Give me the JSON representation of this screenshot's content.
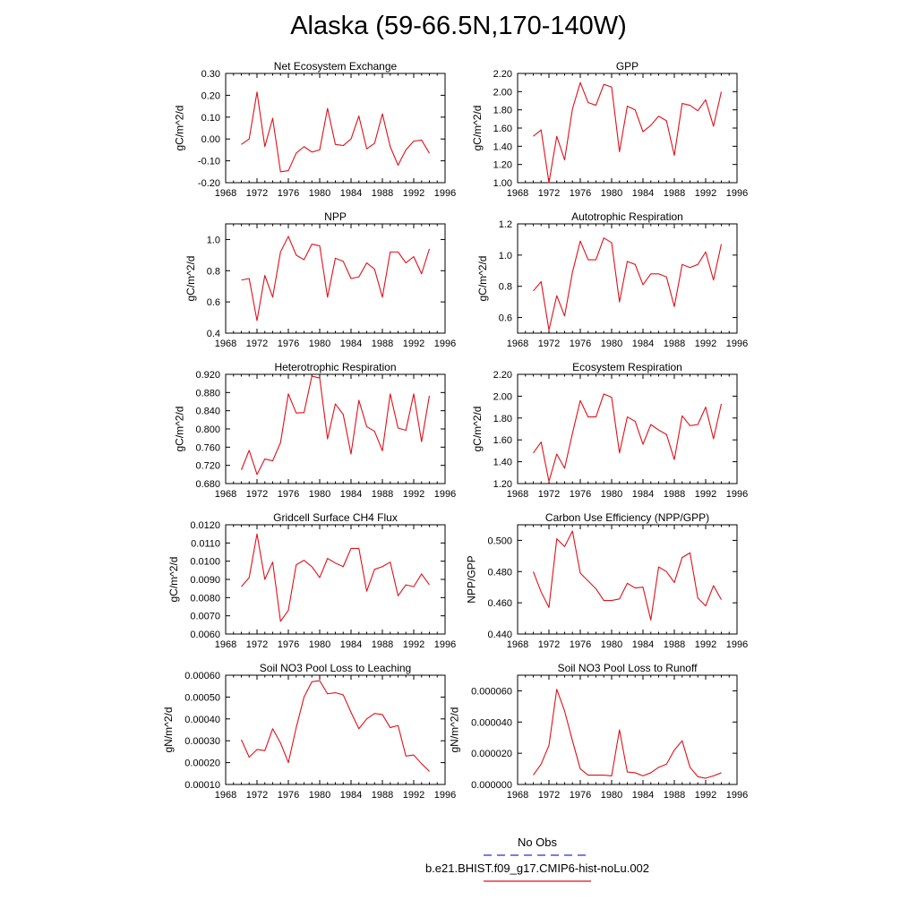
{
  "figure": {
    "title": "Alaska (59-66.5N,170-140W)"
  },
  "legend": {
    "items": [
      {
        "label": "No Obs",
        "color": "#2b2bdc",
        "style": "dashed"
      },
      {
        "label": "b.e21.BHIST.f09_g17.CMIP6-hist-noLu.002",
        "color": "#e0101a",
        "style": "solid"
      }
    ]
  },
  "chart_data": [
    {
      "type": "line",
      "title": "Net Ecosystem Exchange",
      "xlabel": "",
      "ylabel": "gC/m^2/d",
      "xlim": [
        1968,
        1996
      ],
      "ylim": [
        -0.2,
        0.3
      ],
      "xticks": [
        "1968",
        "1972",
        "1976",
        "1980",
        "1984",
        "1988",
        "1992",
        "1996"
      ],
      "yticks": [
        "-0.20",
        "-0.10",
        "0.00",
        "0.10",
        "0.20",
        "0.30"
      ],
      "x": [
        1970,
        1971,
        1972,
        1973,
        1974,
        1975,
        1976,
        1977,
        1978,
        1979,
        1980,
        1981,
        1982,
        1983,
        1984,
        1985,
        1986,
        1987,
        1988,
        1989,
        1990,
        1991,
        1992,
        1993,
        1994
      ],
      "series": [
        {
          "color": "#e0101a",
          "values": [
            -0.025,
            0.0,
            0.215,
            -0.035,
            0.095,
            -0.15,
            -0.145,
            -0.065,
            -0.035,
            -0.06,
            -0.05,
            0.14,
            -0.025,
            -0.03,
            0.0,
            0.105,
            -0.045,
            -0.02,
            0.115,
            -0.035,
            -0.12,
            -0.05,
            -0.01,
            -0.005,
            -0.065
          ]
        }
      ]
    },
    {
      "type": "line",
      "title": "GPP",
      "xlabel": "",
      "ylabel": "gC/m^2/d",
      "xlim": [
        1968,
        1996
      ],
      "ylim": [
        1.0,
        2.2
      ],
      "xticks": [
        "1968",
        "1972",
        "1976",
        "1980",
        "1984",
        "1988",
        "1992",
        "1996"
      ],
      "yticks": [
        "1.00",
        "1.20",
        "1.40",
        "1.60",
        "1.80",
        "2.00",
        "2.20"
      ],
      "x": [
        1970,
        1971,
        1972,
        1973,
        1974,
        1975,
        1976,
        1977,
        1978,
        1979,
        1980,
        1981,
        1982,
        1983,
        1984,
        1985,
        1986,
        1987,
        1988,
        1989,
        1990,
        1991,
        1992,
        1993,
        1994
      ],
      "series": [
        {
          "color": "#e0101a",
          "values": [
            1.51,
            1.58,
            1.0,
            1.51,
            1.25,
            1.81,
            2.1,
            1.88,
            1.85,
            2.08,
            2.05,
            1.34,
            1.84,
            1.8,
            1.56,
            1.63,
            1.73,
            1.68,
            1.3,
            1.87,
            1.85,
            1.79,
            1.91,
            1.62,
            2.0
          ]
        }
      ]
    },
    {
      "type": "line",
      "title": "NPP",
      "xlabel": "",
      "ylabel": "gC/m^2/d",
      "xlim": [
        1968,
        1996
      ],
      "ylim": [
        0.4,
        1.1
      ],
      "xticks": [
        "1968",
        "1972",
        "1976",
        "1980",
        "1984",
        "1988",
        "1992",
        "1996"
      ],
      "yticks": [
        "0.4",
        "0.6",
        "0.8",
        "1.0"
      ],
      "ytick_values": [
        0.4,
        0.6,
        0.8,
        1.0
      ],
      "x": [
        1970,
        1971,
        1972,
        1973,
        1974,
        1975,
        1976,
        1977,
        1978,
        1979,
        1980,
        1981,
        1982,
        1983,
        1984,
        1985,
        1986,
        1987,
        1988,
        1989,
        1990,
        1991,
        1992,
        1993,
        1994
      ],
      "series": [
        {
          "color": "#e0101a",
          "values": [
            0.74,
            0.75,
            0.48,
            0.77,
            0.63,
            0.92,
            1.02,
            0.9,
            0.87,
            0.97,
            0.96,
            0.63,
            0.88,
            0.86,
            0.75,
            0.76,
            0.85,
            0.81,
            0.63,
            0.92,
            0.92,
            0.85,
            0.89,
            0.78,
            0.94
          ]
        }
      ]
    },
    {
      "type": "line",
      "title": "Autotrophic Respiration",
      "xlabel": "",
      "ylabel": "gC/m^2/d",
      "xlim": [
        1968,
        1996
      ],
      "ylim": [
        0.5,
        1.2
      ],
      "xticks": [
        "1968",
        "1972",
        "1976",
        "1980",
        "1984",
        "1988",
        "1992",
        "1996"
      ],
      "yticks": [
        "0.6",
        "0.8",
        "1.0",
        "1.2"
      ],
      "ytick_values": [
        0.6,
        0.8,
        1.0,
        1.2
      ],
      "x": [
        1970,
        1971,
        1972,
        1973,
        1974,
        1975,
        1976,
        1977,
        1978,
        1979,
        1980,
        1981,
        1982,
        1983,
        1984,
        1985,
        1986,
        1987,
        1988,
        1989,
        1990,
        1991,
        1992,
        1993,
        1994
      ],
      "series": [
        {
          "color": "#e0101a",
          "values": [
            0.77,
            0.83,
            0.52,
            0.74,
            0.61,
            0.89,
            1.09,
            0.97,
            0.97,
            1.11,
            1.08,
            0.7,
            0.96,
            0.94,
            0.81,
            0.88,
            0.88,
            0.86,
            0.67,
            0.94,
            0.92,
            0.94,
            1.02,
            0.84,
            1.07
          ]
        }
      ]
    },
    {
      "type": "line",
      "title": "Heterotrophic Respiration",
      "xlabel": "",
      "ylabel": "gC/m^2/d",
      "xlim": [
        1968,
        1996
      ],
      "ylim": [
        0.68,
        0.92
      ],
      "xticks": [
        "1968",
        "1972",
        "1976",
        "1980",
        "1984",
        "1988",
        "1992",
        "1996"
      ],
      "yticks": [
        "0.680",
        "0.720",
        "0.760",
        "0.800",
        "0.840",
        "0.880",
        "0.920"
      ],
      "x": [
        1970,
        1971,
        1972,
        1973,
        1974,
        1975,
        1976,
        1977,
        1978,
        1979,
        1980,
        1981,
        1982,
        1983,
        1984,
        1985,
        1986,
        1987,
        1988,
        1989,
        1990,
        1991,
        1992,
        1993,
        1994
      ],
      "series": [
        {
          "color": "#e0101a",
          "values": [
            0.71,
            0.753,
            0.7,
            0.734,
            0.73,
            0.77,
            0.877,
            0.835,
            0.836,
            0.916,
            0.912,
            0.778,
            0.855,
            0.832,
            0.745,
            0.863,
            0.805,
            0.795,
            0.752,
            0.877,
            0.802,
            0.797,
            0.877,
            0.772,
            0.873
          ]
        }
      ]
    },
    {
      "type": "line",
      "title": "Ecosystem Respiration",
      "xlabel": "",
      "ylabel": "gC/m^2/d",
      "xlim": [
        1968,
        1996
      ],
      "ylim": [
        1.2,
        2.2
      ],
      "xticks": [
        "1968",
        "1972",
        "1976",
        "1980",
        "1984",
        "1988",
        "1992",
        "1996"
      ],
      "yticks": [
        "1.20",
        "1.40",
        "1.60",
        "1.80",
        "2.00",
        "2.20"
      ],
      "x": [
        1970,
        1971,
        1972,
        1973,
        1974,
        1975,
        1976,
        1977,
        1978,
        1979,
        1980,
        1981,
        1982,
        1983,
        1984,
        1985,
        1986,
        1987,
        1988,
        1989,
        1990,
        1991,
        1992,
        1993,
        1994
      ],
      "series": [
        {
          "color": "#e0101a",
          "values": [
            1.48,
            1.58,
            1.22,
            1.47,
            1.34,
            1.66,
            1.96,
            1.81,
            1.81,
            2.02,
            1.99,
            1.48,
            1.81,
            1.77,
            1.56,
            1.74,
            1.69,
            1.65,
            1.42,
            1.82,
            1.73,
            1.74,
            1.9,
            1.61,
            1.93
          ]
        }
      ]
    },
    {
      "type": "line",
      "title": "Gridcell Surface CH4 Flux",
      "xlabel": "",
      "ylabel": "gC/m^2/d",
      "xlim": [
        1968,
        1996
      ],
      "ylim": [
        0.006,
        0.012
      ],
      "xticks": [
        "1968",
        "1972",
        "1976",
        "1980",
        "1984",
        "1988",
        "1992",
        "1996"
      ],
      "yticks": [
        "0.0060",
        "0.0070",
        "0.0080",
        "0.0090",
        "0.0100",
        "0.0110",
        "0.0120"
      ],
      "x": [
        1970,
        1971,
        1972,
        1973,
        1974,
        1975,
        1976,
        1977,
        1978,
        1979,
        1980,
        1981,
        1982,
        1983,
        1984,
        1985,
        1986,
        1987,
        1988,
        1989,
        1990,
        1991,
        1992,
        1993,
        1994
      ],
      "series": [
        {
          "color": "#e0101a",
          "values": [
            0.0086,
            0.0091,
            0.0115,
            0.009,
            0.00995,
            0.0067,
            0.0073,
            0.0098,
            0.01005,
            0.0097,
            0.0091,
            0.01015,
            0.0099,
            0.0097,
            0.0107,
            0.0107,
            0.00835,
            0.00955,
            0.0097,
            0.00995,
            0.0081,
            0.0087,
            0.0086,
            0.0093,
            0.0087
          ]
        }
      ]
    },
    {
      "type": "line",
      "title": "Carbon Use Efficiency (NPP/GPP)",
      "xlabel": "",
      "ylabel": "NPP/GPP",
      "xlim": [
        1968,
        1996
      ],
      "ylim": [
        0.44,
        0.51
      ],
      "xticks": [
        "1968",
        "1972",
        "1976",
        "1980",
        "1984",
        "1988",
        "1992",
        "1996"
      ],
      "yticks": [
        "0.440",
        "0.460",
        "0.480",
        "0.500"
      ],
      "ytick_values": [
        0.44,
        0.46,
        0.48,
        0.5
      ],
      "x": [
        1970,
        1971,
        1972,
        1973,
        1974,
        1975,
        1976,
        1977,
        1978,
        1979,
        1980,
        1981,
        1982,
        1983,
        1984,
        1985,
        1986,
        1987,
        1988,
        1989,
        1990,
        1991,
        1992,
        1993,
        1994
      ],
      "series": [
        {
          "color": "#e0101a",
          "values": [
            0.48,
            0.467,
            0.457,
            0.501,
            0.496,
            0.506,
            0.479,
            0.474,
            0.469,
            0.4615,
            0.4615,
            0.4625,
            0.4725,
            0.4695,
            0.47,
            0.449,
            0.483,
            0.48,
            0.473,
            0.489,
            0.492,
            0.463,
            0.458,
            0.471,
            0.462
          ]
        }
      ]
    },
    {
      "type": "line",
      "title": "Soil NO3 Pool Loss to Leaching",
      "xlabel": "",
      "ylabel": "gN/m^2/d",
      "xlim": [
        1968,
        1996
      ],
      "ylim": [
        0.0001,
        0.0006
      ],
      "xticks": [
        "1968",
        "1972",
        "1976",
        "1980",
        "1984",
        "1988",
        "1992",
        "1996"
      ],
      "yticks": [
        "0.00010",
        "0.00020",
        "0.00030",
        "0.00040",
        "0.00050",
        "0.00060"
      ],
      "x": [
        1970,
        1971,
        1972,
        1973,
        1974,
        1975,
        1976,
        1977,
        1978,
        1979,
        1980,
        1981,
        1982,
        1983,
        1984,
        1985,
        1986,
        1987,
        1988,
        1989,
        1990,
        1991,
        1992,
        1993,
        1994
      ],
      "series": [
        {
          "color": "#e0101a",
          "values": [
            0.000305,
            0.000225,
            0.00026,
            0.000255,
            0.000355,
            0.00029,
            0.0002,
            0.00036,
            0.0005,
            0.00057,
            0.000575,
            0.000515,
            0.00052,
            0.00051,
            0.00043,
            0.000355,
            0.0004,
            0.000425,
            0.00042,
            0.00036,
            0.00037,
            0.00023,
            0.000235,
            0.000195,
            0.00016
          ]
        }
      ]
    },
    {
      "type": "line",
      "title": "Soil NO3 Pool Loss to Runoff",
      "xlabel": "",
      "ylabel": "gN/m^2/d",
      "xlim": [
        1968,
        1996
      ],
      "ylim": [
        0,
        7e-05
      ],
      "xticks": [
        "1968",
        "1972",
        "1976",
        "1980",
        "1984",
        "1988",
        "1992",
        "1996"
      ],
      "yticks": [
        "0.000000",
        "0.000020",
        "0.000040",
        "0.000060"
      ],
      "ytick_values": [
        0,
        2e-05,
        4e-05,
        6e-05
      ],
      "x": [
        1970,
        1971,
        1972,
        1973,
        1974,
        1975,
        1976,
        1977,
        1978,
        1979,
        1980,
        1981,
        1982,
        1983,
        1984,
        1985,
        1986,
        1987,
        1988,
        1989,
        1990,
        1991,
        1992,
        1993,
        1994
      ],
      "series": [
        {
          "color": "#e0101a",
          "values": [
            6e-06,
            1.3e-05,
            2.5e-05,
            6.1e-05,
            4.7e-05,
            2.8e-05,
            1e-05,
            6e-06,
            6e-06,
            6e-06,
            5.5e-06,
            3.5e-05,
            8e-06,
            7.5e-06,
            5.5e-06,
            7.5e-06,
            1.1e-05,
            1.3e-05,
            2.2e-05,
            2.8e-05,
            1.1e-05,
            5e-06,
            4e-06,
            5.5e-06,
            7.5e-06
          ]
        }
      ]
    }
  ]
}
